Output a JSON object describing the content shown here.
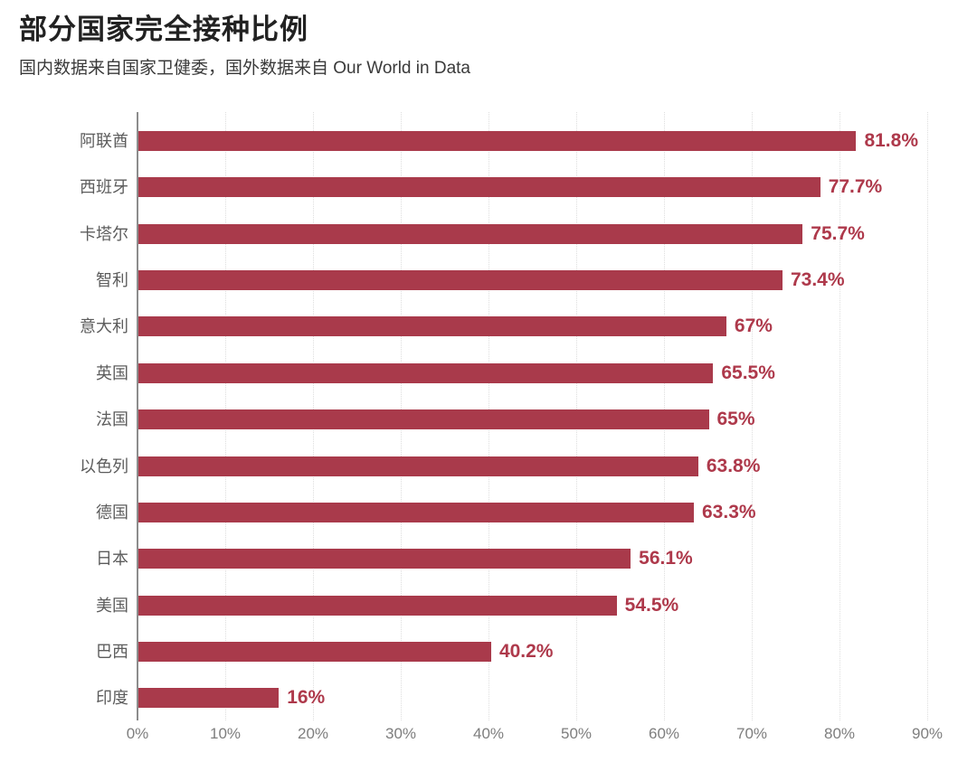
{
  "header": {
    "title": "部分国家完全接种比例",
    "subtitle": "国内数据来自国家卫健委，国外数据来自 Our World in Data"
  },
  "chart_data": {
    "type": "bar",
    "orientation": "horizontal",
    "title": "部分国家完全接种比例",
    "subtitle": "国内数据来自国家卫健委，国外数据来自 Our World in Data",
    "categories": [
      "阿联酋",
      "西班牙",
      "卡塔尔",
      "智利",
      "意大利",
      "英国",
      "法国",
      "以色列",
      "德国",
      "日本",
      "美国",
      "巴西",
      "印度"
    ],
    "values": [
      81.8,
      77.7,
      75.7,
      73.4,
      67,
      65.5,
      65,
      63.8,
      63.3,
      56.1,
      54.5,
      40.2,
      16
    ],
    "value_labels": [
      "81.8%",
      "77.7%",
      "75.7%",
      "73.4%",
      "67%",
      "65.5%",
      "65%",
      "63.8%",
      "63.3%",
      "56.1%",
      "54.5%",
      "40.2%",
      "16%"
    ],
    "x_tick_values": [
      0,
      10,
      20,
      30,
      40,
      50,
      60,
      70,
      80,
      90
    ],
    "x_tick_labels": [
      "0%",
      "10%",
      "20%",
      "30%",
      "40%",
      "50%",
      "60%",
      "70%",
      "80%",
      "90%"
    ],
    "xlim": [
      0,
      90
    ],
    "grid": "vertical-dotted",
    "legend": false,
    "colors": {
      "bar": "#A93A4B",
      "value_label": "#AE394B",
      "category_label": "#5c5c5c",
      "tick_label": "#7e7e7e",
      "gridline": "#dedede",
      "axis_line": "#8c8c8c",
      "background": "#ffffff"
    }
  }
}
